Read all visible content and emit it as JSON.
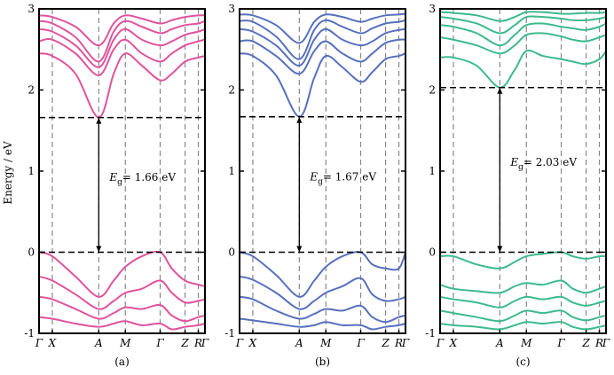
{
  "chart_data": [
    {
      "type": "line",
      "caption": "(a)",
      "ylabel": "Energy / eV",
      "ylim": [
        -1,
        3
      ],
      "yticks": [
        -1,
        0,
        1,
        2,
        3
      ],
      "kpoints": [
        {
          "label": "Γ",
          "x": 0.0
        },
        {
          "label": "X",
          "x": 0.08
        },
        {
          "label": "A",
          "x": 0.36
        },
        {
          "label": "M",
          "x": 0.52
        },
        {
          "label": "Γ",
          "x": 0.73
        },
        {
          "label": "Z",
          "x": 0.88
        },
        {
          "label": "R",
          "x": 0.96
        },
        {
          "label": "Γ",
          "x": 1.0
        }
      ],
      "color": "#e0529c",
      "gap_label": "= 1.66 eV",
      "gap_symbol": "E",
      "gap_sub": "g",
      "gap": 1.66,
      "cbm": 1.66,
      "vbm": 0.0,
      "arrow_x": 0.36,
      "conduction_bands": [
        {
          "x": [
            0,
            0.08,
            0.22,
            0.36,
            0.45,
            0.52,
            0.62,
            0.73,
            0.8,
            0.88,
            0.96,
            1.0
          ],
          "y": [
            2.45,
            2.42,
            2.2,
            1.66,
            2.2,
            2.45,
            2.3,
            2.12,
            2.2,
            2.35,
            2.4,
            2.42
          ]
        },
        {
          "x": [
            0,
            0.08,
            0.22,
            0.36,
            0.45,
            0.52,
            0.62,
            0.73,
            0.8,
            0.88,
            0.96,
            1.0
          ],
          "y": [
            2.6,
            2.62,
            2.45,
            2.18,
            2.5,
            2.62,
            2.45,
            2.35,
            2.45,
            2.55,
            2.6,
            2.62
          ]
        },
        {
          "x": [
            0,
            0.08,
            0.22,
            0.36,
            0.45,
            0.52,
            0.62,
            0.73,
            0.8,
            0.88,
            0.96,
            1.0
          ],
          "y": [
            2.75,
            2.72,
            2.55,
            2.28,
            2.62,
            2.75,
            2.62,
            2.55,
            2.6,
            2.68,
            2.72,
            2.75
          ]
        },
        {
          "x": [
            0,
            0.08,
            0.22,
            0.36,
            0.45,
            0.52,
            0.62,
            0.73,
            0.8,
            0.88,
            0.96,
            1.0
          ],
          "y": [
            2.85,
            2.82,
            2.65,
            2.35,
            2.72,
            2.85,
            2.78,
            2.7,
            2.75,
            2.8,
            2.82,
            2.85
          ]
        },
        {
          "x": [
            0,
            0.08,
            0.22,
            0.36,
            0.45,
            0.52,
            0.62,
            0.73,
            0.8,
            0.88,
            0.96,
            1.0
          ],
          "y": [
            2.92,
            2.9,
            2.78,
            2.55,
            2.82,
            2.92,
            2.88,
            2.82,
            2.86,
            2.9,
            2.92,
            2.92
          ]
        }
      ],
      "valence_bands": [
        {
          "x": [
            0,
            0.08,
            0.22,
            0.36,
            0.45,
            0.52,
            0.62,
            0.73,
            0.8,
            0.88,
            0.96,
            1.0
          ],
          "y": [
            0.0,
            -0.05,
            -0.3,
            -0.55,
            -0.35,
            -0.18,
            -0.05,
            0.0,
            -0.2,
            -0.35,
            -0.4,
            -0.42
          ]
        },
        {
          "x": [
            0,
            0.08,
            0.22,
            0.36,
            0.45,
            0.52,
            0.62,
            0.73,
            0.8,
            0.88,
            0.96,
            1.0
          ],
          "y": [
            -0.3,
            -0.35,
            -0.52,
            -0.7,
            -0.6,
            -0.5,
            -0.45,
            -0.35,
            -0.5,
            -0.62,
            -0.6,
            -0.58
          ]
        },
        {
          "x": [
            0,
            0.08,
            0.22,
            0.36,
            0.45,
            0.52,
            0.62,
            0.73,
            0.8,
            0.88,
            0.96,
            1.0
          ],
          "y": [
            -0.55,
            -0.58,
            -0.7,
            -0.82,
            -0.75,
            -0.68,
            -0.7,
            -0.65,
            -0.78,
            -0.85,
            -0.8,
            -0.78
          ]
        },
        {
          "x": [
            0,
            0.08,
            0.22,
            0.36,
            0.45,
            0.52,
            0.62,
            0.73,
            0.8,
            0.88,
            0.96,
            1.0
          ],
          "y": [
            -0.8,
            -0.82,
            -0.88,
            -0.92,
            -0.88,
            -0.85,
            -0.9,
            -0.88,
            -0.95,
            -0.92,
            -0.9,
            -0.88
          ]
        }
      ]
    },
    {
      "type": "line",
      "caption": "(b)",
      "ylim": [
        -1,
        3
      ],
      "yticks": [
        -1,
        0,
        1,
        2,
        3
      ],
      "kpoints": [
        {
          "label": "Γ",
          "x": 0.0
        },
        {
          "label": "X",
          "x": 0.08
        },
        {
          "label": "A",
          "x": 0.36
        },
        {
          "label": "M",
          "x": 0.52
        },
        {
          "label": "Γ",
          "x": 0.73
        },
        {
          "label": "Z",
          "x": 0.88
        },
        {
          "label": "R",
          "x": 0.96
        },
        {
          "label": "Γ",
          "x": 1.0
        }
      ],
      "color": "#5670bd",
      "gap_label": "= 1.67 eV",
      "gap_symbol": "E",
      "gap_sub": "g",
      "gap": 1.67,
      "cbm": 1.67,
      "vbm": 0.0,
      "arrow_x": 0.36,
      "conduction_bands": [
        {
          "x": [
            0,
            0.08,
            0.22,
            0.36,
            0.45,
            0.52,
            0.62,
            0.73,
            0.8,
            0.88,
            0.96,
            1.0
          ],
          "y": [
            2.45,
            2.42,
            2.18,
            1.67,
            2.15,
            2.42,
            2.28,
            2.1,
            2.22,
            2.38,
            2.42,
            2.45
          ]
        },
        {
          "x": [
            0,
            0.08,
            0.22,
            0.36,
            0.45,
            0.52,
            0.62,
            0.73,
            0.8,
            0.88,
            0.96,
            1.0
          ],
          "y": [
            2.6,
            2.6,
            2.42,
            2.2,
            2.48,
            2.6,
            2.45,
            2.35,
            2.45,
            2.58,
            2.62,
            2.62
          ]
        },
        {
          "x": [
            0,
            0.08,
            0.22,
            0.36,
            0.45,
            0.52,
            0.62,
            0.73,
            0.8,
            0.88,
            0.96,
            1.0
          ],
          "y": [
            2.75,
            2.72,
            2.55,
            2.3,
            2.62,
            2.75,
            2.62,
            2.55,
            2.6,
            2.7,
            2.74,
            2.75
          ]
        },
        {
          "x": [
            0,
            0.08,
            0.22,
            0.36,
            0.45,
            0.52,
            0.62,
            0.73,
            0.8,
            0.88,
            0.96,
            1.0
          ],
          "y": [
            2.85,
            2.84,
            2.66,
            2.38,
            2.74,
            2.86,
            2.78,
            2.7,
            2.76,
            2.82,
            2.84,
            2.86
          ]
        },
        {
          "x": [
            0,
            0.08,
            0.22,
            0.36,
            0.45,
            0.52,
            0.62,
            0.73,
            0.8,
            0.88,
            0.96,
            1.0
          ],
          "y": [
            2.93,
            2.92,
            2.8,
            2.58,
            2.84,
            2.93,
            2.9,
            2.84,
            2.88,
            2.92,
            2.93,
            2.94
          ]
        }
      ],
      "valence_bands": [
        {
          "x": [
            0,
            0.08,
            0.22,
            0.36,
            0.45,
            0.52,
            0.62,
            0.73,
            0.8,
            0.88,
            0.96,
            1.0
          ],
          "y": [
            0.0,
            -0.05,
            -0.28,
            -0.55,
            -0.35,
            -0.18,
            -0.05,
            0.0,
            -0.15,
            -0.2,
            -0.2,
            0.0
          ]
        },
        {
          "x": [
            0,
            0.08,
            0.22,
            0.36,
            0.45,
            0.52,
            0.62,
            0.73,
            0.8,
            0.88,
            0.96,
            1.0
          ],
          "y": [
            -0.3,
            -0.34,
            -0.5,
            -0.7,
            -0.6,
            -0.5,
            -0.42,
            -0.32,
            -0.52,
            -0.6,
            -0.58,
            -0.55
          ]
        },
        {
          "x": [
            0,
            0.08,
            0.22,
            0.36,
            0.45,
            0.52,
            0.62,
            0.73,
            0.8,
            0.88,
            0.96,
            1.0
          ],
          "y": [
            -0.55,
            -0.58,
            -0.72,
            -0.82,
            -0.76,
            -0.7,
            -0.72,
            -0.66,
            -0.8,
            -0.86,
            -0.8,
            -0.78
          ]
        },
        {
          "x": [
            0,
            0.08,
            0.22,
            0.36,
            0.45,
            0.52,
            0.62,
            0.73,
            0.8,
            0.88,
            0.96,
            1.0
          ],
          "y": [
            -0.82,
            -0.84,
            -0.88,
            -0.92,
            -0.9,
            -0.86,
            -0.9,
            -0.9,
            -0.95,
            -0.92,
            -0.9,
            -0.88
          ]
        }
      ]
    },
    {
      "type": "line",
      "caption": "(c)",
      "ylim": [
        -1,
        3
      ],
      "yticks": [
        -1,
        0,
        1,
        2,
        3
      ],
      "kpoints": [
        {
          "label": "Γ",
          "x": 0.0
        },
        {
          "label": "X",
          "x": 0.08
        },
        {
          "label": "A",
          "x": 0.36
        },
        {
          "label": "M",
          "x": 0.52
        },
        {
          "label": "Γ",
          "x": 0.73
        },
        {
          "label": "Z",
          "x": 0.88
        },
        {
          "label": "R",
          "x": 0.96
        },
        {
          "label": "Γ",
          "x": 1.0
        }
      ],
      "color": "#3dba8c",
      "gap_label": "= 2.03 eV",
      "gap_symbol": "E",
      "gap_sub": "g",
      "gap": 2.03,
      "cbm": 2.03,
      "vbm": 0.0,
      "arrow_x": 0.36,
      "conduction_bands": [
        {
          "x": [
            0,
            0.08,
            0.22,
            0.36,
            0.45,
            0.52,
            0.62,
            0.73,
            0.8,
            0.88,
            0.96,
            1.0
          ],
          "y": [
            2.4,
            2.4,
            2.3,
            2.03,
            2.25,
            2.48,
            2.42,
            2.38,
            2.35,
            2.32,
            2.38,
            2.48
          ]
        },
        {
          "x": [
            0,
            0.08,
            0.22,
            0.36,
            0.45,
            0.52,
            0.62,
            0.73,
            0.8,
            0.88,
            0.96,
            1.0
          ],
          "y": [
            2.65,
            2.62,
            2.55,
            2.45,
            2.55,
            2.68,
            2.7,
            2.66,
            2.62,
            2.6,
            2.65,
            2.68
          ]
        },
        {
          "x": [
            0,
            0.08,
            0.22,
            0.36,
            0.45,
            0.52,
            0.62,
            0.73,
            0.8,
            0.88,
            0.96,
            1.0
          ],
          "y": [
            2.8,
            2.78,
            2.7,
            2.55,
            2.68,
            2.8,
            2.82,
            2.78,
            2.76,
            2.74,
            2.78,
            2.82
          ]
        },
        {
          "x": [
            0,
            0.08,
            0.22,
            0.36,
            0.45,
            0.52,
            0.62,
            0.73,
            0.8,
            0.88,
            0.96,
            1.0
          ],
          "y": [
            2.9,
            2.88,
            2.82,
            2.7,
            2.8,
            2.9,
            2.9,
            2.88,
            2.86,
            2.86,
            2.88,
            2.9
          ]
        },
        {
          "x": [
            0,
            0.08,
            0.22,
            0.36,
            0.45,
            0.52,
            0.62,
            0.73,
            0.8,
            0.88,
            0.96,
            1.0
          ],
          "y": [
            2.96,
            2.95,
            2.92,
            2.85,
            2.9,
            2.96,
            2.96,
            2.94,
            2.94,
            2.95,
            2.95,
            2.96
          ]
        }
      ],
      "valence_bands": [
        {
          "x": [
            0,
            0.08,
            0.22,
            0.36,
            0.45,
            0.52,
            0.62,
            0.73,
            0.8,
            0.88,
            0.96,
            1.0
          ],
          "y": [
            -0.05,
            -0.05,
            -0.15,
            -0.2,
            -0.12,
            -0.05,
            -0.02,
            0.0,
            -0.05,
            -0.08,
            -0.05,
            -0.05
          ]
        },
        {
          "x": [
            0,
            0.08,
            0.22,
            0.36,
            0.45,
            0.52,
            0.62,
            0.73,
            0.8,
            0.88,
            0.96,
            1.0
          ],
          "y": [
            -0.4,
            -0.45,
            -0.48,
            -0.5,
            -0.42,
            -0.38,
            -0.4,
            -0.35,
            -0.45,
            -0.5,
            -0.45,
            -0.42
          ]
        },
        {
          "x": [
            0,
            0.08,
            0.22,
            0.36,
            0.45,
            0.52,
            0.62,
            0.73,
            0.8,
            0.88,
            0.96,
            1.0
          ],
          "y": [
            -0.55,
            -0.58,
            -0.62,
            -0.68,
            -0.6,
            -0.55,
            -0.58,
            -0.55,
            -0.62,
            -0.66,
            -0.62,
            -0.6
          ]
        },
        {
          "x": [
            0,
            0.08,
            0.22,
            0.36,
            0.45,
            0.52,
            0.62,
            0.73,
            0.8,
            0.88,
            0.96,
            1.0
          ],
          "y": [
            -0.72,
            -0.75,
            -0.8,
            -0.85,
            -0.78,
            -0.72,
            -0.75,
            -0.72,
            -0.8,
            -0.84,
            -0.8,
            -0.78
          ]
        },
        {
          "x": [
            0,
            0.08,
            0.22,
            0.36,
            0.45,
            0.52,
            0.62,
            0.73,
            0.8,
            0.88,
            0.96,
            1.0
          ],
          "y": [
            -0.88,
            -0.9,
            -0.92,
            -0.95,
            -0.9,
            -0.86,
            -0.88,
            -0.86,
            -0.92,
            -0.95,
            -0.92,
            -0.9
          ]
        }
      ]
    }
  ]
}
